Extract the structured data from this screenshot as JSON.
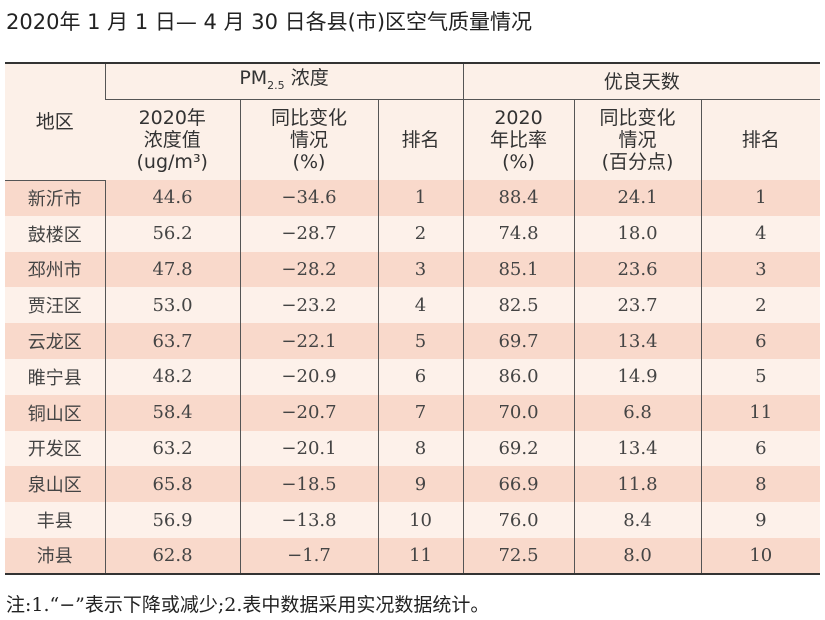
{
  "title": "2020年 1 月 1 日— 4 月 30 日各县(市)区空气质量情况",
  "header": {
    "region": "地区",
    "pm_group": "PM",
    "pm_sub": "2.5",
    "pm_suffix": " 浓度",
    "good_group": "优良天数",
    "pm_value": [
      "2020年",
      "浓度值",
      "(ug/m³)"
    ],
    "pm_change": [
      "同比变化",
      "情况",
      "(%)"
    ],
    "pm_rank": "排名",
    "good_rate": [
      "2020",
      "年比率",
      "(%)"
    ],
    "good_change": [
      "同比变化",
      "情况",
      "(百分点)"
    ],
    "good_rank": "排名"
  },
  "rows": [
    [
      "新沂市",
      "44.6",
      "−34.6",
      "1",
      "88.4",
      "24.1",
      "1"
    ],
    [
      "鼓楼区",
      "56.2",
      "−28.7",
      "2",
      "74.8",
      "18.0",
      "4"
    ],
    [
      "邳州市",
      "47.8",
      "−28.2",
      "3",
      "85.1",
      "23.6",
      "3"
    ],
    [
      "贾汪区",
      "53.0",
      "−23.2",
      "4",
      "82.5",
      "23.7",
      "2"
    ],
    [
      "云龙区",
      "63.7",
      "−22.1",
      "5",
      "69.7",
      "13.4",
      "6"
    ],
    [
      "睢宁县",
      "48.2",
      "−20.9",
      "6",
      "86.0",
      "14.9",
      "5"
    ],
    [
      "铜山区",
      "58.4",
      "−20.7",
      "7",
      "70.0",
      "6.8",
      "11"
    ],
    [
      "开发区",
      "63.2",
      "−20.1",
      "8",
      "69.2",
      "13.4",
      "6"
    ],
    [
      "泉山区",
      "65.8",
      "−18.5",
      "9",
      "66.9",
      "11.8",
      "8"
    ],
    [
      "丰县",
      "56.9",
      "−13.8",
      "10",
      "76.0",
      "8.4",
      "9"
    ],
    [
      "沛县",
      "62.8",
      "−1.7",
      "11",
      "72.5",
      "8.0",
      "10"
    ]
  ],
  "note": "注:1.“−”表示下降或减少;2.表中数据采用实况数据统计。"
}
